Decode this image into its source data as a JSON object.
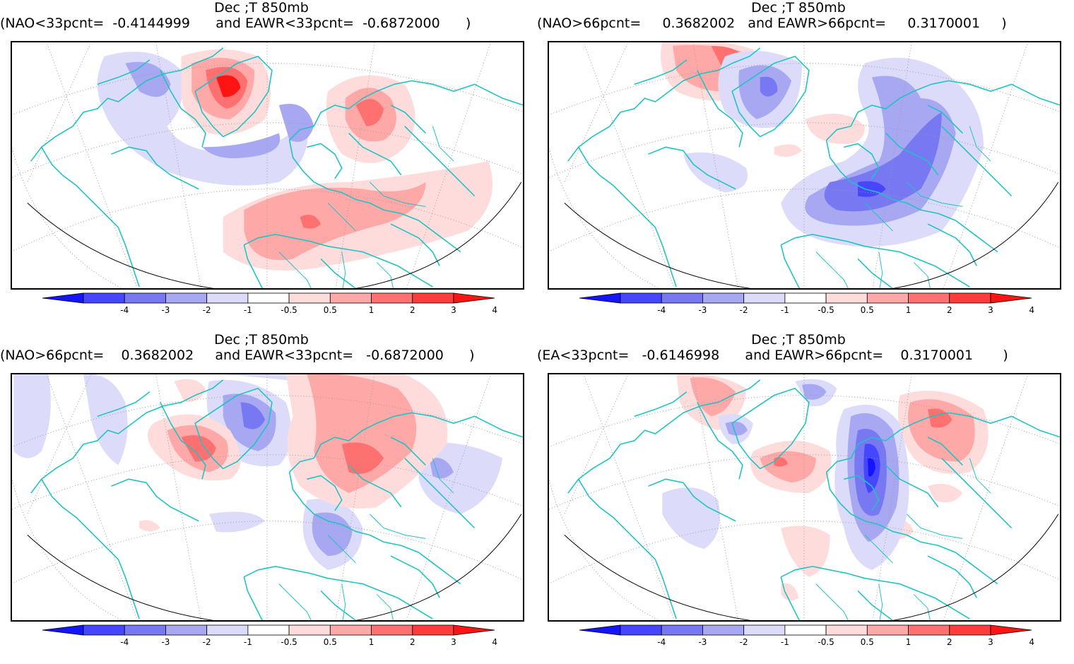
{
  "colorbar": {
    "ticks": [
      "-4",
      "-3",
      "-2",
      "-1",
      "-0.5",
      "0.5",
      "1",
      "2",
      "3",
      "4"
    ],
    "colors": [
      "#1414ff",
      "#4646ff",
      "#7878f2",
      "#a8a8f2",
      "#dcdcfa",
      "#ffffff",
      "#ffdcdc",
      "#ffa8a8",
      "#ff7070",
      "#ff3c3c",
      "#ff1414"
    ]
  },
  "panels": [
    {
      "title": "Dec ;T 850mb",
      "condition_a": "(NAO<33pcnt=",
      "value_a": "-0.4144999",
      "condition_b": "and EAWR<33pcnt=",
      "value_b": "-0.6872000",
      "close": ")"
    },
    {
      "title": "Dec ;T 850mb",
      "condition_a": "(NAO>66pcnt=",
      "value_a": "0.3682002",
      "condition_b": "and EAWR>66pcnt=",
      "value_b": "0.3170001",
      "close": ")"
    },
    {
      "title": "Dec ;T 850mb",
      "condition_a": "(NAO>66pcnt=",
      "value_a": "0.3682002",
      "condition_b": "and EAWR<33pcnt=",
      "value_b": "-0.6872000",
      "close": ")"
    },
    {
      "title": "Dec ;T 850mb",
      "condition_a": "(EA<33pcnt=",
      "value_a": "-0.6146998",
      "condition_b": "and EAWR>66pcnt=",
      "value_b": "0.3170001",
      "close": ")"
    }
  ]
}
